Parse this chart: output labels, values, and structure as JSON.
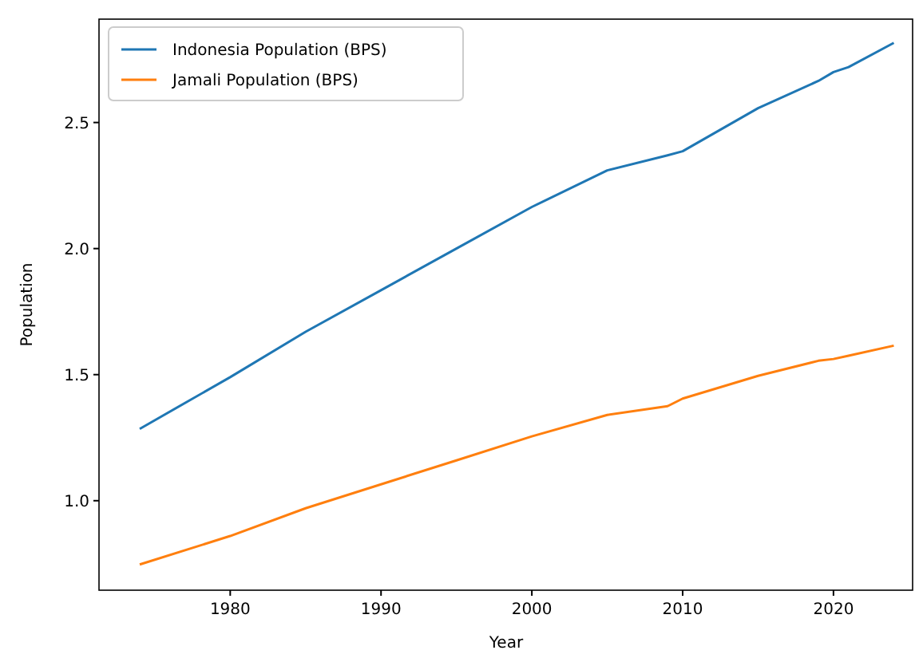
{
  "chart_data": {
    "type": "line",
    "xlabel": "Year",
    "ylabel": "Population",
    "x": [
      1974,
      1980,
      1985,
      1990,
      1995,
      2000,
      2005,
      2009,
      2010,
      2015,
      2019,
      2020,
      2021,
      2024
    ],
    "series": [
      {
        "name": "Indonesia Population (BPS)",
        "color": "#1f77b4",
        "values": [
          1.285,
          1.49,
          1.67,
          1.835,
          2.0,
          2.165,
          2.31,
          2.37,
          2.386,
          2.557,
          2.665,
          2.7,
          2.72,
          2.816
        ]
      },
      {
        "name": "Jamali Population (BPS)",
        "color": "#ff7f0e",
        "values": [
          0.747,
          0.86,
          0.97,
          1.065,
          1.16,
          1.255,
          1.34,
          1.375,
          1.405,
          1.495,
          1.555,
          1.562,
          1.575,
          1.615
        ]
      }
    ],
    "xlim": [
      1971.3,
      2025.3
    ],
    "xticks": [
      1980,
      1990,
      2000,
      2010,
      2020
    ],
    "ylim": [
      0.645,
      2.91
    ],
    "yticks": [
      {
        "value": 1.0,
        "label": "1.0"
      },
      {
        "value": 1.5,
        "label": "1.5"
      },
      {
        "value": 2.0,
        "label": "2.0"
      },
      {
        "value": 2.5,
        "label": "2.5"
      }
    ],
    "legend": "top left",
    "grid": false,
    "line_style": "solid",
    "marker": "none"
  }
}
